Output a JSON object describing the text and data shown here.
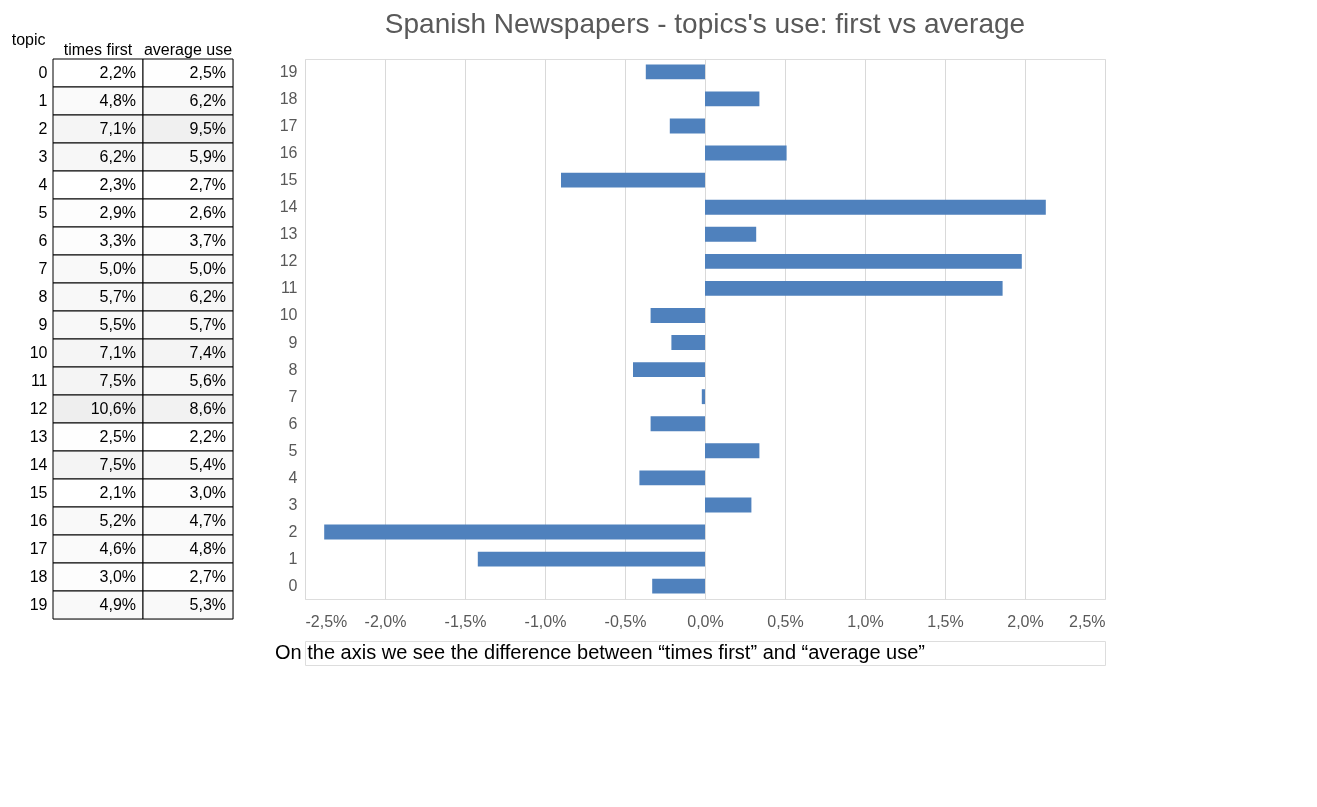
{
  "chart_data": [
    {
      "type": "heatmap",
      "ylabel": "topic",
      "categories": [
        "times first",
        "average use"
      ],
      "y_categories": [
        "0",
        "1",
        "2",
        "3",
        "4",
        "5",
        "6",
        "7",
        "8",
        "9",
        "10",
        "11",
        "12",
        "13",
        "14",
        "15",
        "16",
        "17",
        "18",
        "19"
      ],
      "cells": [
        [
          2.2,
          2.5
        ],
        [
          4.8,
          6.2
        ],
        [
          7.1,
          9.5
        ],
        [
          6.2,
          5.9
        ],
        [
          2.3,
          2.7
        ],
        [
          2.9,
          2.6
        ],
        [
          3.3,
          3.7
        ],
        [
          5.0,
          5.0
        ],
        [
          5.7,
          6.2
        ],
        [
          5.5,
          5.7
        ],
        [
          7.1,
          7.4
        ],
        [
          7.5,
          5.6
        ],
        [
          10.6,
          8.6
        ],
        [
          2.5,
          2.2
        ],
        [
          7.5,
          5.4
        ],
        [
          2.1,
          3.0
        ],
        [
          5.2,
          4.7
        ],
        [
          4.6,
          4.8
        ],
        [
          3.0,
          2.7
        ],
        [
          4.9,
          5.3
        ]
      ],
      "cell_labels": [
        [
          "2,2%",
          "2,5%"
        ],
        [
          "4,8%",
          "6,2%"
        ],
        [
          "7,1%",
          "9,5%"
        ],
        [
          "6,2%",
          "5,9%"
        ],
        [
          "2,3%",
          "2,7%"
        ],
        [
          "2,9%",
          "2,6%"
        ],
        [
          "3,3%",
          "3,7%"
        ],
        [
          "5,0%",
          "5,0%"
        ],
        [
          "5,7%",
          "6,2%"
        ],
        [
          "5,5%",
          "5,7%"
        ],
        [
          "7,1%",
          "7,4%"
        ],
        [
          "7,5%",
          "5,6%"
        ],
        [
          "10,6%",
          "8,6%"
        ],
        [
          "2,5%",
          "2,2%"
        ],
        [
          "7,5%",
          "5,4%"
        ],
        [
          "2,1%",
          "3,0%"
        ],
        [
          "5,2%",
          "4,7%"
        ],
        [
          "4,6%",
          "4,8%"
        ],
        [
          "3,0%",
          "2,7%"
        ],
        [
          "4,9%",
          "5,3%"
        ]
      ]
    },
    {
      "type": "bar",
      "orientation": "horizontal",
      "title": "Spanish Newspapers - topics's use: first vs average",
      "categories": [
        "19",
        "18",
        "17",
        "16",
        "15",
        "14",
        "13",
        "12",
        "11",
        "10",
        "9",
        "8",
        "7",
        "6",
        "5",
        "4",
        "3",
        "2",
        "1",
        "0"
      ],
      "values": [
        -0.37,
        0.34,
        -0.22,
        0.51,
        -0.9,
        2.13,
        0.32,
        1.98,
        1.86,
        -0.34,
        -0.21,
        -0.45,
        -0.02,
        -0.34,
        0.34,
        -0.41,
        0.29,
        -2.38,
        -1.42,
        -0.33
      ],
      "color": "#4f81bd",
      "xlim": [
        -2.5,
        2.5
      ],
      "xticks": [
        {
          "value": -2.5,
          "label": "-2,5%"
        },
        {
          "value": -2.0,
          "label": "-2,0%"
        },
        {
          "value": -1.5,
          "label": "-1,5%"
        },
        {
          "value": -1.0,
          "label": "-1,0%"
        },
        {
          "value": -0.5,
          "label": "-0,5%"
        },
        {
          "value": 0,
          "label": "0,0%"
        },
        {
          "value": 0.5,
          "label": "0,5%"
        },
        {
          "value": 1.0,
          "label": "1,0%"
        },
        {
          "value": 1.5,
          "label": "1,5%"
        },
        {
          "value": 2.0,
          "label": "2,0%"
        },
        {
          "value": 2.5,
          "label": "2,5%"
        }
      ],
      "grid": "x",
      "annotations": [
        "On the axis we see the difference between “times first” and “average use”"
      ]
    }
  ]
}
